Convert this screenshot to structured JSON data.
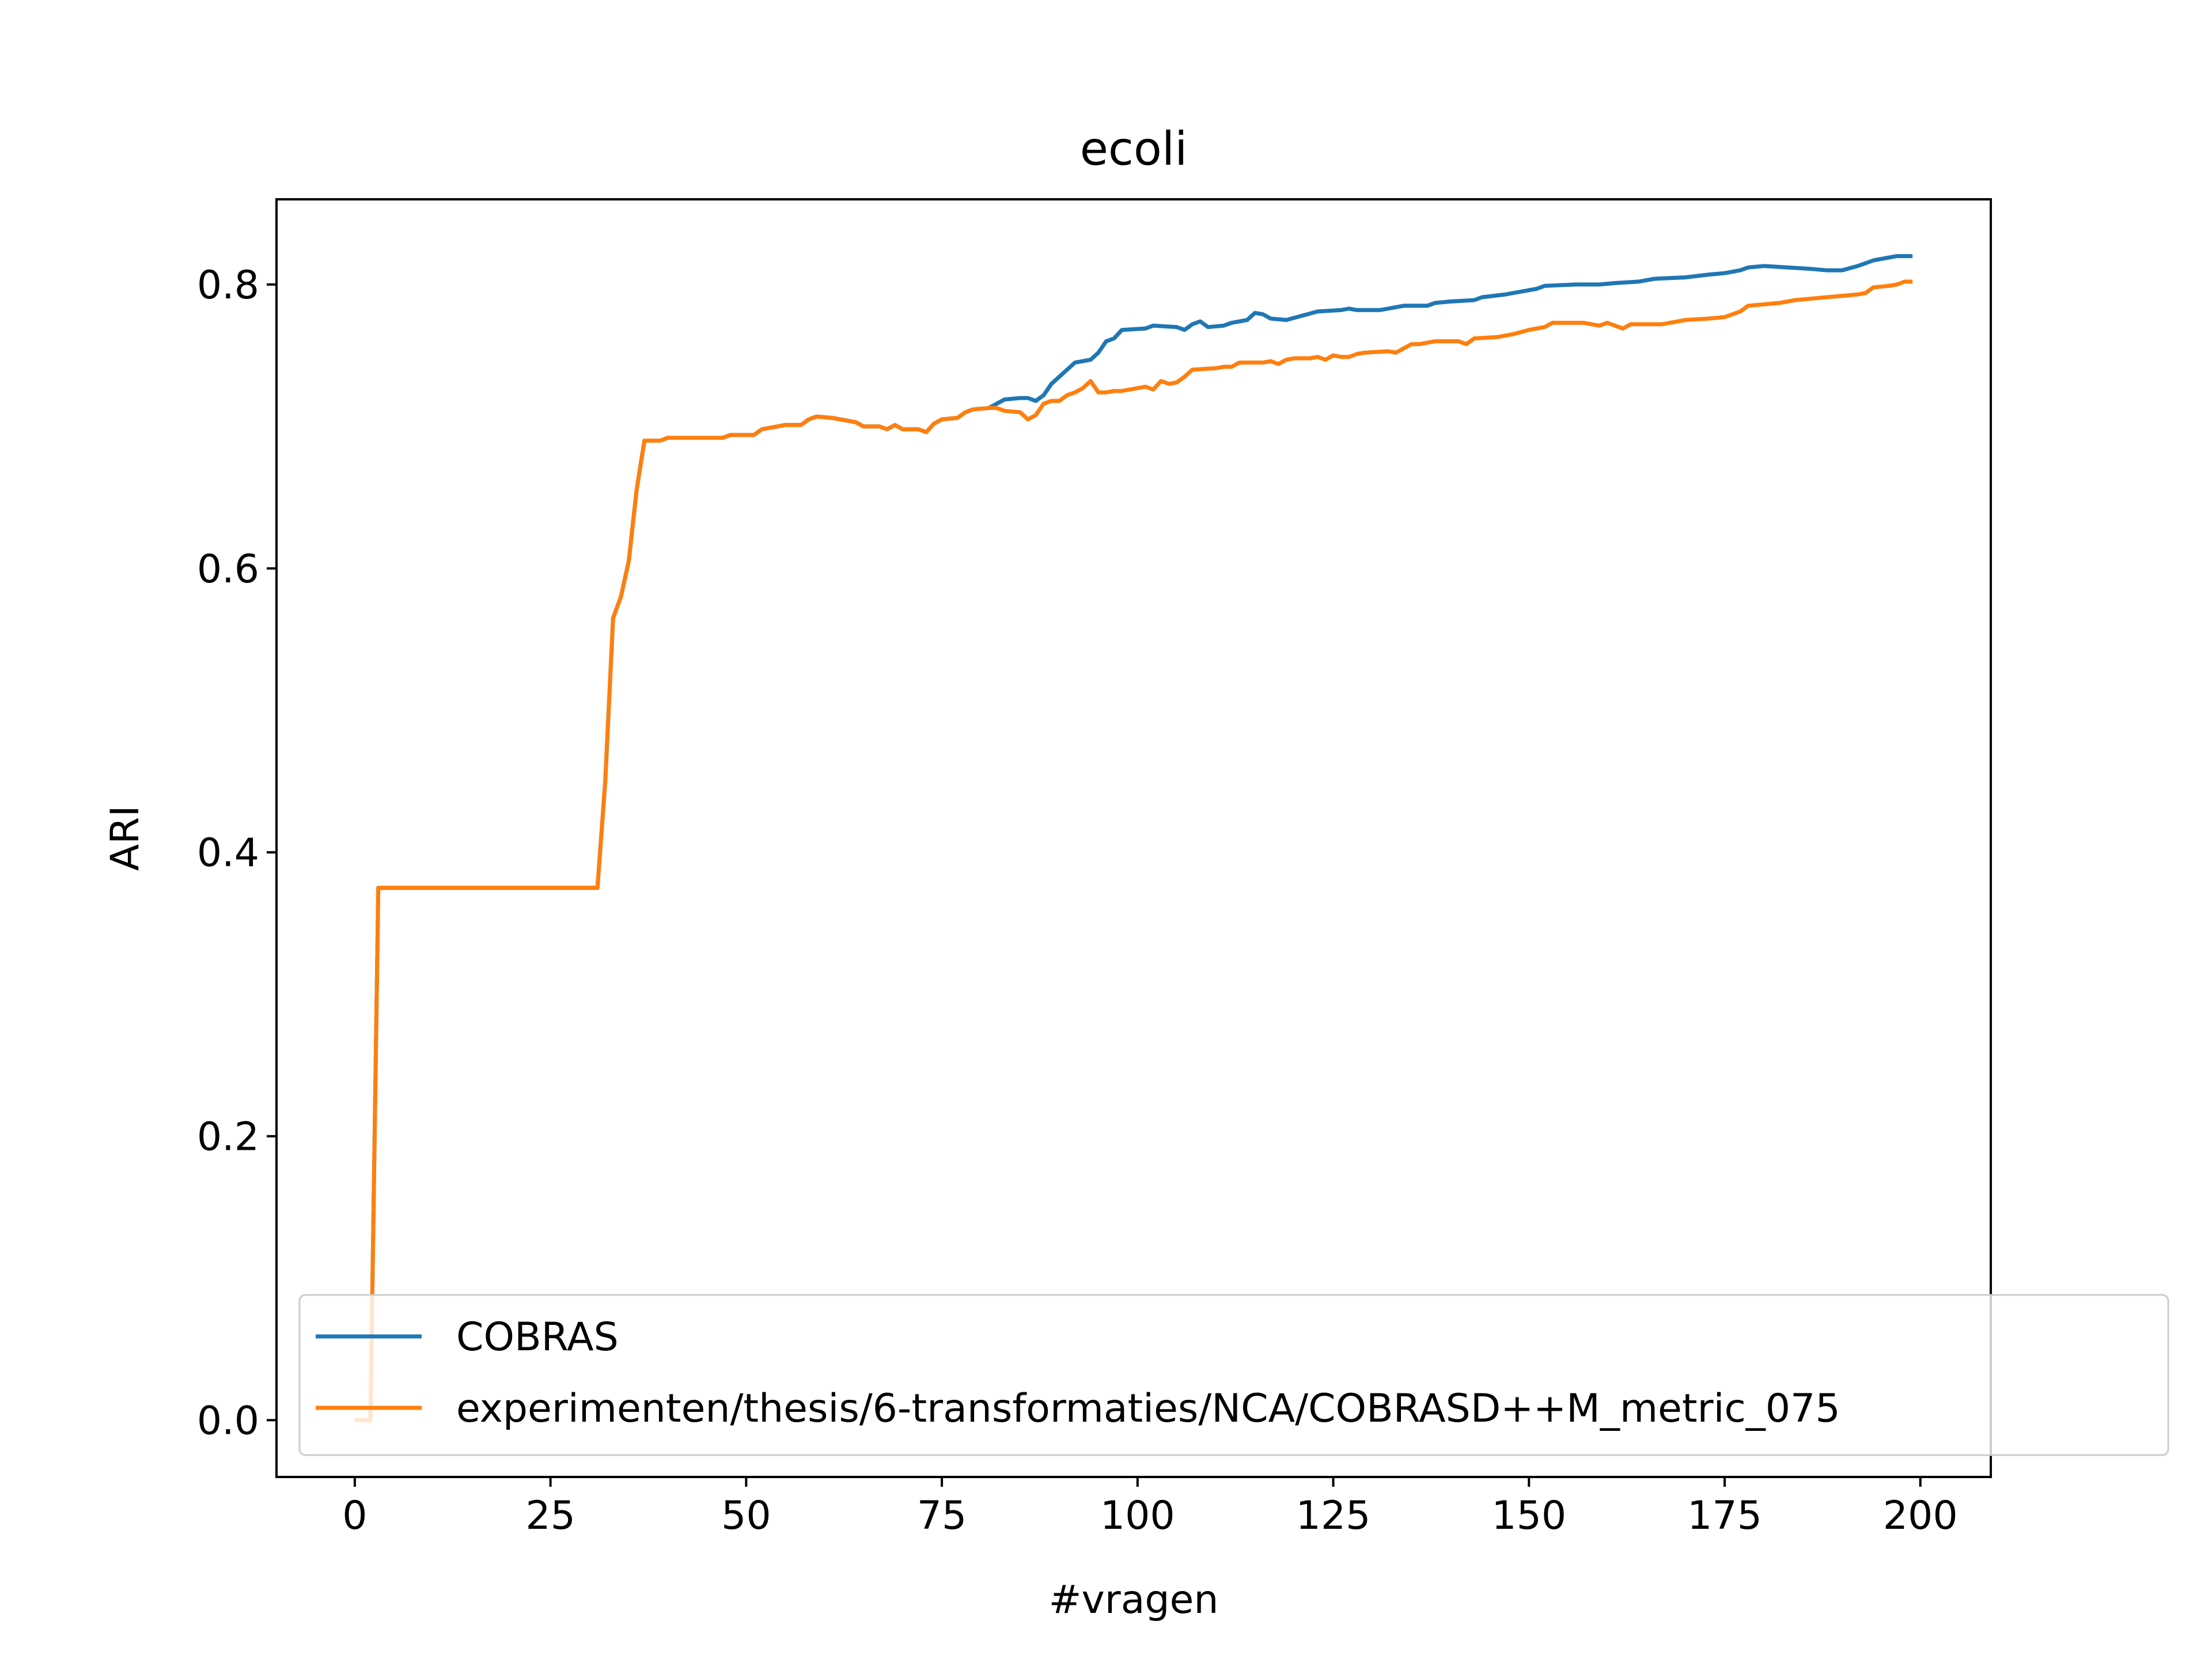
{
  "chart_data": {
    "type": "line",
    "title": "ecoli",
    "xlabel": "#vragen",
    "ylabel": "ARI",
    "xlim": [
      -10,
      209
    ],
    "ylim": [
      -0.04,
      0.86
    ],
    "xticks": [
      0,
      25,
      50,
      75,
      100,
      125,
      150,
      175,
      200
    ],
    "yticks": [
      0.0,
      0.2,
      0.4,
      0.6,
      0.8
    ],
    "xtick_labels": [
      "0",
      "25",
      "50",
      "75",
      "100",
      "125",
      "150",
      "175",
      "200"
    ],
    "ytick_labels": [
      "0.0",
      "0.2",
      "0.4",
      "0.6",
      "0.8"
    ],
    "grid": false,
    "legend_position": "lower-right",
    "series": [
      {
        "name": "COBRAS",
        "color": "#1f77b4",
        "points": [
          [
            0,
            0.0
          ],
          [
            2,
            0.0
          ],
          [
            3,
            0.375
          ],
          [
            31,
            0.375
          ],
          [
            32,
            0.45
          ],
          [
            33,
            0.565
          ],
          [
            34,
            0.58
          ],
          [
            35,
            0.605
          ],
          [
            36,
            0.655
          ],
          [
            37,
            0.69
          ],
          [
            39,
            0.69
          ],
          [
            40,
            0.692
          ],
          [
            47,
            0.692
          ],
          [
            48,
            0.694
          ],
          [
            51,
            0.694
          ],
          [
            52,
            0.698
          ],
          [
            55,
            0.701
          ],
          [
            57,
            0.701
          ],
          [
            58,
            0.705
          ],
          [
            59,
            0.707
          ],
          [
            61,
            0.706
          ],
          [
            64,
            0.703
          ],
          [
            65,
            0.7
          ],
          [
            67,
            0.7
          ],
          [
            68,
            0.698
          ],
          [
            69,
            0.701
          ],
          [
            70,
            0.698
          ],
          [
            72,
            0.698
          ],
          [
            73,
            0.696
          ],
          [
            74,
            0.702
          ],
          [
            75,
            0.705
          ],
          [
            77,
            0.706
          ],
          [
            78,
            0.71
          ],
          [
            79,
            0.712
          ],
          [
            81,
            0.713
          ],
          [
            83,
            0.719
          ],
          [
            85,
            0.72
          ],
          [
            86,
            0.72
          ],
          [
            87,
            0.718
          ],
          [
            88,
            0.722
          ],
          [
            89,
            0.73
          ],
          [
            91,
            0.74
          ],
          [
            92,
            0.745
          ],
          [
            94,
            0.747
          ],
          [
            95,
            0.752
          ],
          [
            96,
            0.76
          ],
          [
            97,
            0.762
          ],
          [
            98,
            0.768
          ],
          [
            101,
            0.769
          ],
          [
            102,
            0.771
          ],
          [
            105,
            0.77
          ],
          [
            106,
            0.768
          ],
          [
            107,
            0.772
          ],
          [
            108,
            0.774
          ],
          [
            109,
            0.77
          ],
          [
            111,
            0.771
          ],
          [
            112,
            0.773
          ],
          [
            114,
            0.775
          ],
          [
            115,
            0.78
          ],
          [
            116,
            0.779
          ],
          [
            117,
            0.776
          ],
          [
            119,
            0.775
          ],
          [
            121,
            0.778
          ],
          [
            123,
            0.781
          ],
          [
            126,
            0.782
          ],
          [
            127,
            0.783
          ],
          [
            128,
            0.782
          ],
          [
            131,
            0.782
          ],
          [
            132,
            0.783
          ],
          [
            134,
            0.785
          ],
          [
            137,
            0.785
          ],
          [
            138,
            0.787
          ],
          [
            140,
            0.788
          ],
          [
            143,
            0.789
          ],
          [
            144,
            0.791
          ],
          [
            147,
            0.793
          ],
          [
            149,
            0.795
          ],
          [
            151,
            0.797
          ],
          [
            152,
            0.799
          ],
          [
            156,
            0.8
          ],
          [
            159,
            0.8
          ],
          [
            161,
            0.801
          ],
          [
            164,
            0.802
          ],
          [
            166,
            0.804
          ],
          [
            170,
            0.805
          ],
          [
            173,
            0.807
          ],
          [
            175,
            0.808
          ],
          [
            177,
            0.81
          ],
          [
            178,
            0.812
          ],
          [
            180,
            0.813
          ],
          [
            183,
            0.812
          ],
          [
            186,
            0.811
          ],
          [
            188,
            0.81
          ],
          [
            190,
            0.81
          ],
          [
            192,
            0.813
          ],
          [
            194,
            0.817
          ],
          [
            196,
            0.819
          ],
          [
            197,
            0.82
          ],
          [
            199,
            0.82
          ]
        ]
      },
      {
        "name": "experimenten/thesis/6-transformaties/NCA/COBRASD++M_metric_075",
        "color": "#ff7f0e",
        "points": [
          [
            0,
            0.0
          ],
          [
            2,
            0.0
          ],
          [
            3,
            0.375
          ],
          [
            31,
            0.375
          ],
          [
            32,
            0.45
          ],
          [
            33,
            0.565
          ],
          [
            34,
            0.58
          ],
          [
            35,
            0.605
          ],
          [
            36,
            0.655
          ],
          [
            37,
            0.69
          ],
          [
            39,
            0.69
          ],
          [
            40,
            0.692
          ],
          [
            47,
            0.692
          ],
          [
            48,
            0.694
          ],
          [
            51,
            0.694
          ],
          [
            52,
            0.698
          ],
          [
            55,
            0.701
          ],
          [
            57,
            0.701
          ],
          [
            58,
            0.705
          ],
          [
            59,
            0.707
          ],
          [
            61,
            0.706
          ],
          [
            64,
            0.703
          ],
          [
            65,
            0.7
          ],
          [
            67,
            0.7
          ],
          [
            68,
            0.698
          ],
          [
            69,
            0.701
          ],
          [
            70,
            0.698
          ],
          [
            72,
            0.698
          ],
          [
            73,
            0.696
          ],
          [
            74,
            0.702
          ],
          [
            75,
            0.705
          ],
          [
            77,
            0.706
          ],
          [
            78,
            0.71
          ],
          [
            79,
            0.712
          ],
          [
            81,
            0.713
          ],
          [
            82,
            0.713
          ],
          [
            83,
            0.711
          ],
          [
            85,
            0.71
          ],
          [
            86,
            0.705
          ],
          [
            87,
            0.708
          ],
          [
            88,
            0.716
          ],
          [
            89,
            0.718
          ],
          [
            90,
            0.718
          ],
          [
            91,
            0.722
          ],
          [
            92,
            0.724
          ],
          [
            93,
            0.727
          ],
          [
            94,
            0.732
          ],
          [
            95,
            0.724
          ],
          [
            96,
            0.724
          ],
          [
            97,
            0.725
          ],
          [
            98,
            0.725
          ],
          [
            100,
            0.727
          ],
          [
            101,
            0.728
          ],
          [
            102,
            0.726
          ],
          [
            103,
            0.732
          ],
          [
            104,
            0.73
          ],
          [
            105,
            0.731
          ],
          [
            106,
            0.735
          ],
          [
            107,
            0.74
          ],
          [
            110,
            0.741
          ],
          [
            111,
            0.742
          ],
          [
            112,
            0.742
          ],
          [
            113,
            0.745
          ],
          [
            116,
            0.745
          ],
          [
            117,
            0.746
          ],
          [
            118,
            0.744
          ],
          [
            119,
            0.747
          ],
          [
            120,
            0.748
          ],
          [
            122,
            0.748
          ],
          [
            123,
            0.749
          ],
          [
            124,
            0.747
          ],
          [
            125,
            0.75
          ],
          [
            126,
            0.749
          ],
          [
            127,
            0.749
          ],
          [
            128,
            0.751
          ],
          [
            129,
            0.752
          ],
          [
            132,
            0.753
          ],
          [
            133,
            0.752
          ],
          [
            134,
            0.755
          ],
          [
            135,
            0.758
          ],
          [
            136,
            0.758
          ],
          [
            138,
            0.76
          ],
          [
            141,
            0.76
          ],
          [
            142,
            0.758
          ],
          [
            143,
            0.762
          ],
          [
            146,
            0.763
          ],
          [
            148,
            0.765
          ],
          [
            150,
            0.768
          ],
          [
            152,
            0.77
          ],
          [
            153,
            0.773
          ],
          [
            157,
            0.773
          ],
          [
            158,
            0.772
          ],
          [
            159,
            0.771
          ],
          [
            160,
            0.773
          ],
          [
            161,
            0.771
          ],
          [
            162,
            0.769
          ],
          [
            163,
            0.772
          ],
          [
            166,
            0.772
          ],
          [
            167,
            0.772
          ],
          [
            168,
            0.773
          ],
          [
            170,
            0.775
          ],
          [
            173,
            0.776
          ],
          [
            175,
            0.777
          ],
          [
            177,
            0.781
          ],
          [
            178,
            0.785
          ],
          [
            180,
            0.786
          ],
          [
            182,
            0.787
          ],
          [
            184,
            0.789
          ],
          [
            186,
            0.79
          ],
          [
            188,
            0.791
          ],
          [
            190,
            0.792
          ],
          [
            192,
            0.793
          ],
          [
            193,
            0.794
          ],
          [
            194,
            0.798
          ],
          [
            196,
            0.799
          ],
          [
            197,
            0.8
          ],
          [
            198,
            0.802
          ],
          [
            199,
            0.802
          ]
        ]
      }
    ]
  }
}
